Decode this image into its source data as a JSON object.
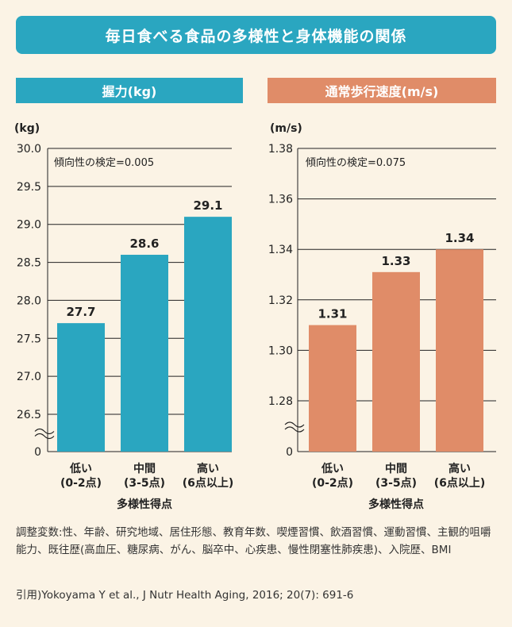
{
  "title": "毎日食べる食品の多様性と身体機能の関係",
  "chart_data": [
    {
      "type": "bar",
      "header": "握力(kg)",
      "unit": "(kg)",
      "annotation": "傾向性の検定=0.005",
      "yticks": [
        "30.0",
        "29.5",
        "29.0",
        "28.5",
        "28.0",
        "27.5",
        "27.0",
        "26.5",
        "0"
      ],
      "ylim": [
        26.5,
        30.0
      ],
      "axis_break": true,
      "categories": [
        [
          "低い",
          "(0-2点)"
        ],
        [
          "中間",
          "(3-5点)"
        ],
        [
          "高い",
          "(6点以上)"
        ]
      ],
      "values": [
        27.7,
        28.6,
        29.1
      ],
      "value_labels": [
        "27.7",
        "28.6",
        "29.1"
      ],
      "xlabel": "多様性得点",
      "color": "#2aa6c0"
    },
    {
      "type": "bar",
      "header": "通常歩行速度(m/s)",
      "unit": "(m/s)",
      "annotation": "傾向性の検定=0.075",
      "yticks": [
        "1.38",
        "1.36",
        "1.34",
        "1.32",
        "1.30",
        "1.28",
        "0"
      ],
      "ylim": [
        1.28,
        1.38
      ],
      "axis_break": true,
      "categories": [
        [
          "低い",
          "(0-2点)"
        ],
        [
          "中間",
          "(3-5点)"
        ],
        [
          "高い",
          "(6点以上)"
        ]
      ],
      "values": [
        1.31,
        1.331,
        1.34
      ],
      "value_labels": [
        "1.31",
        "1.33",
        "1.34"
      ],
      "xlabel": "多様性得点",
      "color": "#e08c68"
    }
  ],
  "notes": "調整変数:性、年齢、研究地域、居住形態、教育年数、喫煙習慣、飲酒習慣、運動習慣、主観的咀嚼能力、既往歴(高血圧、糖尿病、がん、脳卒中、心疾患、慢性閉塞性肺疾患)、入院歴、BMI",
  "citation": "引用)Yokoyama Y et al., J Nutr Health Aging, 2016; 20(7): 691-6"
}
